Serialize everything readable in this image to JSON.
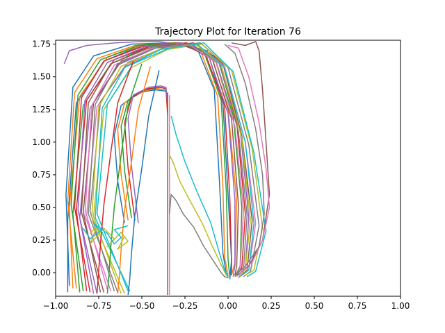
{
  "chart_data": {
    "type": "line",
    "title": "Trajectory Plot for Iteration 76",
    "xlabel": "",
    "ylabel": "",
    "xlim": [
      -1.0,
      1.0
    ],
    "ylim": [
      -0.18,
      1.78
    ],
    "xticks": [
      -1.0,
      -0.75,
      -0.5,
      -0.25,
      0.0,
      0.25,
      0.5,
      0.75,
      1.0
    ],
    "xtick_labels": [
      "−1.00",
      "−0.75",
      "−0.50",
      "−0.25",
      "0.00",
      "0.25",
      "0.50",
      "0.75",
      "1.00"
    ],
    "yticks": [
      0.0,
      0.25,
      0.5,
      0.75,
      1.0,
      1.25,
      1.5,
      1.75
    ],
    "ytick_labels": [
      "0.00",
      "0.25",
      "0.50",
      "0.75",
      "1.00",
      "1.25",
      "1.50",
      "1.75"
    ],
    "grid": false,
    "legend": "none",
    "palette": [
      "#1f77b4",
      "#ff7f0e",
      "#2ca02c",
      "#d62728",
      "#9467bd",
      "#8c564b",
      "#e377c2",
      "#7f7f7f",
      "#bcbd22",
      "#17becf"
    ],
    "series": [
      {
        "x": [
          -0.93,
          -0.93,
          -0.88,
          -0.72,
          -0.5,
          -0.3,
          -0.12,
          -0.03,
          0.0,
          0.02,
          0.01
        ],
        "y": [
          -0.15,
          0.4,
          1.3,
          1.62,
          1.74,
          1.76,
          1.7,
          1.3,
          0.6,
          0.1,
          -0.05
        ]
      },
      {
        "x": [
          -0.9,
          -0.92,
          -0.86,
          -0.7,
          -0.48,
          -0.28,
          -0.1,
          0.0,
          0.05,
          0.04,
          0.02
        ],
        "y": [
          -0.12,
          0.5,
          1.35,
          1.65,
          1.75,
          1.76,
          1.68,
          1.25,
          0.55,
          0.08,
          -0.02
        ]
      },
      {
        "x": [
          -0.86,
          -0.9,
          -0.84,
          -0.68,
          -0.46,
          -0.26,
          -0.08,
          0.03,
          0.08,
          0.07,
          0.04
        ],
        "y": [
          -0.15,
          0.45,
          1.28,
          1.6,
          1.73,
          1.75,
          1.66,
          1.2,
          0.5,
          0.05,
          -0.03
        ]
      },
      {
        "x": [
          -0.82,
          -0.88,
          -0.82,
          -0.66,
          -0.44,
          -0.24,
          -0.06,
          0.05,
          0.1,
          0.08,
          0.05
        ],
        "y": [
          -0.14,
          0.48,
          1.32,
          1.63,
          1.74,
          1.76,
          1.64,
          1.15,
          0.45,
          0.04,
          -0.02
        ]
      },
      {
        "x": [
          -0.78,
          -0.86,
          -0.8,
          -0.64,
          -0.42,
          -0.22,
          -0.05,
          0.07,
          0.12,
          0.1,
          0.06
        ],
        "y": [
          -0.16,
          0.42,
          1.26,
          1.59,
          1.72,
          1.75,
          1.62,
          1.1,
          0.42,
          0.03,
          -0.04
        ]
      },
      {
        "x": [
          -0.74,
          -0.84,
          -0.78,
          -0.62,
          -0.4,
          -0.2,
          -0.03,
          0.08,
          0.14,
          0.11,
          0.07
        ],
        "y": [
          -0.15,
          0.46,
          1.3,
          1.62,
          1.73,
          1.76,
          1.6,
          1.05,
          0.4,
          0.02,
          -0.03
        ]
      },
      {
        "x": [
          -0.7,
          -0.82,
          -0.76,
          -0.6,
          -0.38,
          -0.18,
          -0.02,
          0.1,
          0.16,
          0.12,
          0.08
        ],
        "y": [
          -0.13,
          0.44,
          1.27,
          1.58,
          1.72,
          1.75,
          1.58,
          1.0,
          0.38,
          0.02,
          -0.02
        ]
      },
      {
        "x": [
          -0.66,
          -0.8,
          -0.74,
          -0.58,
          -0.36,
          -0.16,
          0.0,
          0.12,
          0.18,
          0.13,
          0.09
        ],
        "y": [
          -0.14,
          0.47,
          1.31,
          1.61,
          1.73,
          1.76,
          1.57,
          0.98,
          0.36,
          0.01,
          -0.03
        ]
      },
      {
        "x": [
          -0.62,
          -0.78,
          -0.72,
          -0.56,
          -0.35,
          -0.15,
          0.02,
          0.14,
          0.2,
          0.15,
          0.1
        ],
        "y": [
          -0.16,
          0.43,
          1.25,
          1.57,
          1.71,
          1.75,
          1.55,
          0.95,
          0.34,
          0.02,
          -0.02
        ]
      },
      {
        "x": [
          -0.58,
          -0.76,
          -0.7,
          -0.55,
          -0.34,
          -0.14,
          0.03,
          0.15,
          0.22,
          0.16,
          0.11
        ],
        "y": [
          -0.14,
          0.45,
          1.29,
          1.6,
          1.72,
          1.76,
          1.54,
          0.92,
          0.32,
          0.01,
          -0.03
        ]
      },
      {
        "x": [
          -0.92,
          -0.94,
          -0.9,
          -0.78,
          -0.56,
          -0.34,
          -0.18,
          -0.08,
          -0.05,
          -0.03,
          -0.01
        ],
        "y": [
          -0.1,
          0.6,
          1.42,
          1.66,
          1.75,
          1.76,
          1.72,
          1.4,
          0.7,
          0.15,
          -0.01
        ]
      },
      {
        "x": [
          -0.88,
          -0.93,
          -0.89,
          -0.76,
          -0.54,
          -0.32,
          -0.16,
          -0.06,
          -0.03,
          -0.02,
          0.0
        ],
        "y": [
          -0.12,
          0.55,
          1.38,
          1.64,
          1.74,
          1.76,
          1.7,
          1.35,
          0.66,
          0.12,
          -0.02
        ]
      },
      {
        "x": [
          -0.84,
          -0.91,
          -0.87,
          -0.74,
          -0.52,
          -0.3,
          -0.14,
          -0.04,
          -0.01,
          0.0,
          0.01
        ],
        "y": [
          -0.14,
          0.52,
          1.36,
          1.63,
          1.74,
          1.76,
          1.69,
          1.32,
          0.62,
          0.1,
          -0.03
        ]
      },
      {
        "x": [
          -0.8,
          -0.89,
          -0.85,
          -0.72,
          -0.5,
          -0.29,
          -0.13,
          -0.02,
          0.01,
          0.02,
          0.02
        ],
        "y": [
          -0.15,
          0.5,
          1.34,
          1.62,
          1.73,
          1.76,
          1.67,
          1.28,
          0.58,
          0.08,
          -0.02
        ]
      },
      {
        "x": [
          -0.76,
          -0.87,
          -0.83,
          -0.7,
          -0.48,
          -0.27,
          -0.11,
          0.0,
          0.04,
          0.04,
          0.03
        ],
        "y": [
          -0.16,
          0.48,
          1.32,
          1.61,
          1.73,
          1.76,
          1.65,
          1.22,
          0.55,
          0.06,
          -0.03
        ]
      },
      {
        "x": [
          -0.72,
          -0.85,
          -0.81,
          -0.68,
          -0.46,
          -0.25,
          -0.09,
          0.02,
          0.06,
          0.05,
          0.04
        ],
        "y": [
          -0.15,
          0.46,
          1.3,
          1.6,
          1.72,
          1.75,
          1.63,
          1.18,
          0.52,
          0.05,
          -0.02
        ]
      },
      {
        "x": [
          -0.68,
          -0.83,
          -0.79,
          -0.66,
          -0.44,
          -0.23,
          -0.07,
          0.04,
          0.09,
          0.07,
          0.05
        ],
        "y": [
          -0.14,
          0.44,
          1.28,
          1.59,
          1.72,
          1.75,
          1.61,
          1.12,
          0.48,
          0.04,
          -0.03
        ]
      },
      {
        "x": [
          -0.64,
          -0.81,
          -0.77,
          -0.64,
          -0.42,
          -0.21,
          -0.05,
          0.06,
          0.11,
          0.09,
          0.06
        ],
        "y": [
          -0.15,
          0.45,
          1.29,
          1.6,
          1.72,
          1.75,
          1.6,
          1.08,
          0.44,
          0.03,
          -0.02
        ]
      },
      {
        "x": [
          -0.6,
          -0.79,
          -0.75,
          -0.62,
          -0.4,
          -0.19,
          -0.04,
          0.08,
          0.13,
          0.1,
          0.07
        ],
        "y": [
          -0.16,
          0.43,
          1.27,
          1.58,
          1.71,
          1.75,
          1.59,
          1.03,
          0.4,
          0.03,
          -0.03
        ]
      },
      {
        "x": [
          -0.57,
          -0.77,
          -0.73,
          -0.6,
          -0.39,
          -0.18,
          -0.02,
          0.1,
          0.15,
          0.12,
          0.08
        ],
        "y": [
          -0.14,
          0.42,
          1.26,
          1.57,
          1.71,
          1.75,
          1.57,
          1.0,
          0.38,
          0.02,
          -0.02
        ]
      },
      {
        "x": [
          -0.6,
          -0.64,
          -0.66,
          -0.62,
          -0.52,
          -0.42,
          -0.36,
          -0.35
        ],
        "y": [
          0.38,
          0.7,
          1.05,
          1.28,
          1.38,
          1.4,
          1.39,
          1.3
        ]
      },
      {
        "x": [
          -0.58,
          -0.62,
          -0.64,
          -0.6,
          -0.5,
          -0.41,
          -0.36,
          -0.35
        ],
        "y": [
          0.4,
          0.75,
          1.1,
          1.3,
          1.39,
          1.41,
          1.4,
          1.2
        ]
      },
      {
        "x": [
          -0.56,
          -0.6,
          -0.62,
          -0.58,
          -0.48,
          -0.4,
          -0.36,
          -0.35
        ],
        "y": [
          0.42,
          0.78,
          1.12,
          1.32,
          1.4,
          1.42,
          1.41,
          1.25
        ]
      },
      {
        "x": [
          -0.54,
          -0.58,
          -0.6,
          -0.56,
          -0.47,
          -0.39,
          -0.36,
          -0.35
        ],
        "y": [
          0.4,
          0.8,
          1.15,
          1.34,
          1.41,
          1.42,
          1.41,
          1.22
        ]
      },
      {
        "x": [
          -0.52,
          -0.56,
          -0.58,
          -0.55,
          -0.46,
          -0.39,
          -0.36,
          -0.35
        ],
        "y": [
          0.38,
          0.82,
          1.18,
          1.36,
          1.42,
          1.43,
          1.42,
          1.28
        ]
      },
      {
        "x": [
          -0.35,
          -0.35,
          -0.35,
          -0.35
        ],
        "y": [
          -0.17,
          0.3,
          0.8,
          1.38
        ]
      },
      {
        "x": [
          -0.34,
          -0.34,
          -0.34,
          -0.34
        ],
        "y": [
          -0.17,
          0.28,
          0.78,
          1.36
        ]
      },
      {
        "x": [
          -0.34,
          -0.33,
          -0.3,
          -0.26,
          -0.2,
          -0.14,
          -0.08,
          -0.04,
          -0.02,
          0.0
        ],
        "y": [
          0.45,
          0.6,
          0.55,
          0.45,
          0.35,
          0.2,
          0.08,
          0.0,
          -0.03,
          -0.04
        ]
      },
      {
        "x": [
          -0.34,
          -0.32,
          -0.28,
          -0.22,
          -0.15,
          -0.09,
          -0.04,
          -0.01,
          0.01
        ],
        "y": [
          0.9,
          0.85,
          0.7,
          0.55,
          0.38,
          0.2,
          0.06,
          -0.02,
          -0.04
        ]
      },
      {
        "x": [
          -0.33,
          -0.3,
          -0.25,
          -0.18,
          -0.1,
          -0.05,
          -0.02,
          0.0
        ],
        "y": [
          1.2,
          1.05,
          0.85,
          0.62,
          0.38,
          0.15,
          0.02,
          -0.03
        ]
      },
      {
        "x": [
          -0.4,
          -0.46,
          -0.5,
          -0.54,
          -0.56,
          -0.57,
          -0.58
        ],
        "y": [
          1.55,
          1.2,
          0.8,
          0.45,
          0.15,
          -0.05,
          -0.17
        ]
      },
      {
        "x": [
          -0.45,
          -0.52,
          -0.56,
          -0.6,
          -0.62,
          -0.63,
          -0.64
        ],
        "y": [
          1.58,
          1.25,
          0.85,
          0.48,
          0.18,
          -0.02,
          -0.16
        ]
      },
      {
        "x": [
          -0.5,
          -0.58,
          -0.62,
          -0.66,
          -0.68,
          -0.69,
          -0.7
        ],
        "y": [
          1.6,
          1.28,
          0.9,
          0.5,
          0.2,
          0.0,
          -0.16
        ]
      },
      {
        "x": [
          -0.55,
          -0.64,
          -0.68,
          -0.72,
          -0.74,
          -0.75,
          -0.76
        ],
        "y": [
          1.62,
          1.3,
          0.92,
          0.52,
          0.22,
          0.02,
          -0.16
        ]
      },
      {
        "x": [
          -0.35,
          -0.4,
          -0.5,
          -0.65,
          -0.82,
          -0.92,
          -0.95
        ],
        "y": [
          1.76,
          1.77,
          1.77,
          1.76,
          1.74,
          1.7,
          1.6
        ]
      },
      {
        "x": [
          0.02,
          0.1,
          0.16,
          0.18,
          0.2,
          0.22,
          0.24,
          0.2,
          0.12,
          0.05
        ],
        "y": [
          1.76,
          1.74,
          1.77,
          1.7,
          1.4,
          1.0,
          0.6,
          0.25,
          0.05,
          -0.02
        ]
      },
      {
        "x": [
          0.0,
          0.06,
          0.12,
          0.18,
          0.22,
          0.24,
          0.2,
          0.14,
          0.06
        ],
        "y": [
          1.74,
          1.72,
          1.5,
          1.15,
          0.8,
          0.5,
          0.25,
          0.08,
          -0.01
        ]
      },
      {
        "x": [
          -0.02,
          0.04,
          0.1,
          0.16,
          0.2,
          0.21,
          0.18,
          0.1,
          0.04
        ],
        "y": [
          1.75,
          1.68,
          1.45,
          1.1,
          0.75,
          0.45,
          0.2,
          0.05,
          -0.02
        ]
      },
      {
        "x": [
          -0.8,
          -0.76,
          -0.8,
          -0.72,
          -0.66,
          -0.7,
          -0.62,
          -0.58,
          -0.64,
          -0.6
        ],
        "y": [
          0.3,
          0.36,
          0.22,
          0.34,
          0.26,
          0.2,
          0.31,
          0.24,
          0.18,
          0.28
        ]
      },
      {
        "x": [
          -0.84,
          -0.8,
          -0.74,
          -0.78,
          -0.7,
          -0.66,
          -0.62,
          -0.66,
          -0.58
        ],
        "y": [
          0.34,
          0.26,
          0.32,
          0.38,
          0.3,
          0.22,
          0.27,
          0.33,
          0.36
        ]
      }
    ]
  }
}
